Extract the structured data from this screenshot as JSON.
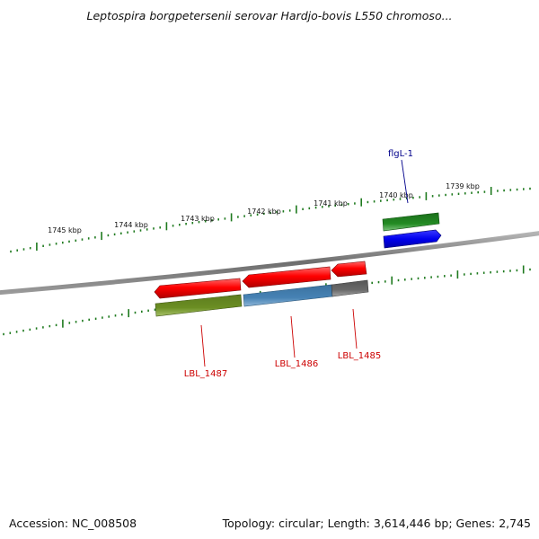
{
  "title": "Leptospira borgpetersenii serovar Hardjo-bovis L550 chromoso...",
  "scale": {
    "labels": [
      "1745 kbp",
      "1744 kbp",
      "1743 kbp",
      "1742 kbp",
      "1741 kbp",
      "1740 kbp",
      "1739 kbp"
    ]
  },
  "genes": {
    "flgL": {
      "label": "flgL-1",
      "color": "#00008b"
    },
    "lbl1487": {
      "label": "LBL_1487",
      "color": "#cc0000"
    },
    "lbl1486": {
      "label": "LBL_1486",
      "color": "#cc0000"
    },
    "lbl1485": {
      "label": "LBL_1485",
      "color": "#cc0000"
    }
  },
  "colors": {
    "backbone": "#7a7a7a",
    "tick": "#1f7a1f",
    "forward_gene_cds": "#0000ee",
    "forward_gene_green": "#1e8c1e",
    "reverse_gene_red": "#ee0000",
    "olive_feature": "#6b8e23",
    "steelblue_feature": "#4682b4",
    "gray_feature": "#696969"
  },
  "footer": {
    "accession": "Accession: NC_008508",
    "topology": "Topology: circular; Length: 3,614,446 bp; Genes: 2,745"
  }
}
